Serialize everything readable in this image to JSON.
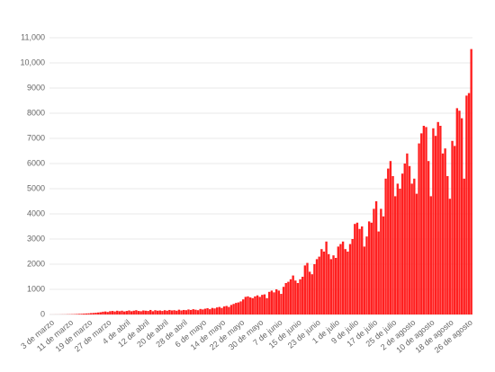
{
  "chart_data": {
    "type": "bar",
    "color": "#ff2020",
    "grid": true,
    "ylim": [
      0,
      11000
    ],
    "yticks": [
      0,
      1000,
      2000,
      3000,
      4000,
      5000,
      6000,
      7000,
      8000,
      9000,
      {
        "value": 10000,
        "label": "10,000"
      },
      {
        "value": 11000,
        "label": "11,000"
      }
    ],
    "categories": [
      "3 de marzo",
      null,
      null,
      null,
      null,
      null,
      null,
      null,
      "11 de marzo",
      null,
      null,
      null,
      null,
      null,
      null,
      null,
      "19 de marzo",
      null,
      null,
      null,
      null,
      null,
      null,
      null,
      "27 de marzo",
      null,
      null,
      null,
      null,
      null,
      null,
      null,
      "4 de abril",
      null,
      null,
      null,
      null,
      null,
      null,
      null,
      "12 de abril",
      null,
      null,
      null,
      null,
      null,
      null,
      null,
      "20 de abril",
      null,
      null,
      null,
      null,
      null,
      null,
      null,
      "28 de abril",
      null,
      null,
      null,
      null,
      null,
      null,
      null,
      "6 de mayo",
      null,
      null,
      null,
      null,
      null,
      null,
      null,
      "14 de mayo",
      null,
      null,
      null,
      null,
      null,
      null,
      null,
      "22 de mayo",
      null,
      null,
      null,
      null,
      null,
      null,
      null,
      "30 de mayo",
      null,
      null,
      null,
      null,
      null,
      null,
      null,
      "7 de junio",
      null,
      null,
      null,
      null,
      null,
      null,
      null,
      "15 de junio",
      null,
      null,
      null,
      null,
      null,
      null,
      null,
      "23 de junio",
      null,
      null,
      null,
      null,
      null,
      null,
      null,
      "1 de julio",
      null,
      null,
      null,
      null,
      null,
      null,
      null,
      "9 de julio",
      null,
      null,
      null,
      null,
      null,
      null,
      null,
      "17 de julio",
      null,
      null,
      null,
      null,
      null,
      null,
      null,
      "25 de julio",
      null,
      null,
      null,
      null,
      null,
      null,
      null,
      "2 de agosto",
      null,
      null,
      null,
      null,
      null,
      null,
      null,
      "10 de agosto",
      null,
      null,
      null,
      null,
      null,
      null,
      null,
      "18 de agosto",
      null,
      null,
      null,
      null,
      null,
      null,
      null,
      "26 de agosto",
      null
    ],
    "values": [
      1,
      1,
      2,
      2,
      3,
      5,
      5,
      8,
      10,
      12,
      15,
      20,
      25,
      28,
      35,
      40,
      45,
      55,
      60,
      70,
      80,
      90,
      110,
      120,
      100,
      130,
      140,
      120,
      150,
      130,
      150,
      120,
      140,
      160,
      130,
      150,
      170,
      140,
      130,
      160,
      150,
      140,
      180,
      130,
      170,
      150,
      160,
      140,
      170,
      150,
      180,
      160,
      170,
      150,
      190,
      160,
      180,
      170,
      200,
      180,
      210,
      190,
      170,
      220,
      200,
      230,
      250,
      210,
      260,
      240,
      280,
      300,
      260,
      320,
      340,
      300,
      380,
      420,
      460,
      480,
      520,
      600,
      700,
      720,
      680,
      650,
      720,
      760,
      700,
      780,
      800,
      650,
      900,
      950,
      880,
      1000,
      950,
      820,
      1100,
      1250,
      1300,
      1400,
      1550,
      1350,
      1250,
      1400,
      1500,
      1950,
      2050,
      1700,
      1600,
      2000,
      2200,
      2300,
      2600,
      2500,
      2900,
      2400,
      2200,
      2350,
      2250,
      2700,
      2800,
      2900,
      2600,
      2500,
      2800,
      3000,
      3600,
      3650,
      3400,
      3500,
      2700,
      3100,
      3700,
      3650,
      4200,
      4500,
      3300,
      4200,
      3900,
      5400,
      5800,
      6100,
      5500,
      4700,
      5200,
      5000,
      5600,
      6000,
      6400,
      5900,
      5200,
      5400,
      4800,
      6800,
      7200,
      7500,
      7450,
      6100,
      4700,
      7400,
      7100,
      7650,
      7500,
      6400,
      6600,
      5500,
      4600,
      6900,
      6700,
      8200,
      8100,
      7800,
      5400,
      8700,
      8800,
      10550
    ]
  }
}
